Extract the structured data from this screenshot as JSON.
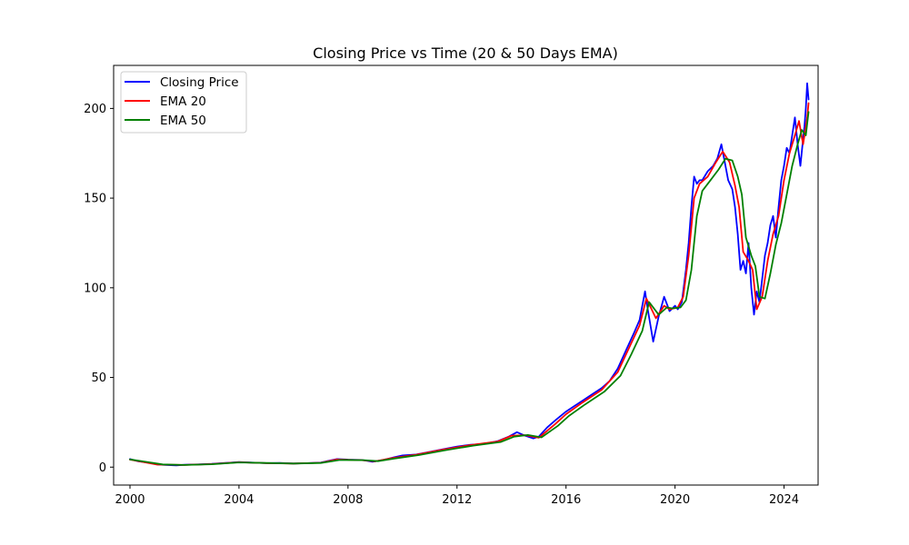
{
  "chart_data": {
    "type": "line",
    "title": "Closing Price vs Time (20 & 50 Days EMA)",
    "xlabel": "",
    "ylabel": "",
    "xlim": [
      1999.4,
      2025.25
    ],
    "ylim": [
      -10,
      224
    ],
    "x_ticks": [
      2000,
      2004,
      2008,
      2012,
      2016,
      2020,
      2024
    ],
    "y_ticks": [
      0,
      50,
      100,
      150,
      200
    ],
    "grid": false,
    "legend_position": "top-left",
    "series": [
      {
        "name": "Closing Price",
        "color": "#0000ff",
        "x": [
          2000.0,
          2000.3,
          2000.7,
          2001.0,
          2001.3,
          2001.7,
          2002.0,
          2002.5,
          2003.0,
          2003.5,
          2004.0,
          2004.5,
          2005.0,
          2005.5,
          2006.0,
          2006.5,
          2007.0,
          2007.3,
          2007.6,
          2008.0,
          2008.5,
          2008.9,
          2009.3,
          2009.7,
          2010.0,
          2010.5,
          2011.0,
          2011.5,
          2012.0,
          2012.5,
          2013.0,
          2013.5,
          2013.9,
          2014.2,
          2014.5,
          2014.8,
          2015.0,
          2015.3,
          2015.6,
          2016.0,
          2016.3,
          2016.6,
          2017.0,
          2017.3,
          2017.6,
          2017.9,
          2018.2,
          2018.5,
          2018.7,
          2018.9,
          2019.0,
          2019.2,
          2019.4,
          2019.6,
          2019.8,
          2020.0,
          2020.1,
          2020.25,
          2020.4,
          2020.5,
          2020.6,
          2020.7,
          2020.8,
          2020.9,
          2021.0,
          2021.2,
          2021.4,
          2021.55,
          2021.7,
          2021.8,
          2021.95,
          2022.1,
          2022.2,
          2022.3,
          2022.4,
          2022.5,
          2022.6,
          2022.7,
          2022.8,
          2022.9,
          2023.0,
          2023.1,
          2023.2,
          2023.3,
          2023.4,
          2023.5,
          2023.6,
          2023.7,
          2023.8,
          2023.9,
          2024.0,
          2024.1,
          2024.2,
          2024.3,
          2024.4,
          2024.5,
          2024.6,
          2024.7,
          2024.75,
          2024.8,
          2024.85,
          2024.9
        ],
        "values": [
          4.5,
          3.2,
          2.5,
          1.5,
          1.2,
          1.0,
          1.3,
          1.5,
          1.8,
          2.3,
          2.8,
          2.5,
          2.2,
          2.3,
          2.0,
          2.2,
          2.5,
          3.5,
          4.5,
          4.2,
          4.0,
          3.0,
          4.0,
          5.5,
          6.5,
          7.0,
          8.5,
          10.0,
          11.5,
          12.5,
          13.0,
          14.5,
          17.0,
          19.5,
          17.5,
          16.0,
          17.0,
          22.0,
          26.0,
          31.0,
          34.0,
          37.0,
          41.0,
          44.0,
          48.0,
          55.0,
          65.0,
          75.0,
          82.0,
          98.0,
          88.0,
          70.0,
          84.0,
          95.0,
          87.0,
          90.0,
          88.0,
          92.0,
          110.0,
          125.0,
          145.0,
          162.0,
          158.0,
          160.0,
          160.0,
          165.0,
          168.0,
          172.0,
          180.0,
          172.0,
          160.0,
          155.0,
          145.0,
          130.0,
          110.0,
          115.0,
          108.0,
          125.0,
          100.0,
          85.0,
          98.0,
          92.0,
          105.0,
          118.0,
          125.0,
          135.0,
          140.0,
          128.0,
          145.0,
          160.0,
          168.0,
          178.0,
          175.0,
          185.0,
          195.0,
          180.0,
          168.0,
          183.0,
          190.0,
          200.0,
          214.0,
          205.0
        ]
      },
      {
        "name": "EMA 20",
        "color": "#ff0000",
        "x": [
          2000.0,
          2000.5,
          2001.0,
          2002.0,
          2003.0,
          2004.0,
          2005.0,
          2006.0,
          2007.0,
          2007.6,
          2008.5,
          2009.0,
          2009.6,
          2010.5,
          2011.5,
          2012.5,
          2013.5,
          2014.0,
          2014.5,
          2015.0,
          2015.6,
          2016.0,
          2016.6,
          2017.3,
          2017.9,
          2018.3,
          2018.7,
          2018.95,
          2019.3,
          2019.6,
          2019.8,
          2020.1,
          2020.3,
          2020.5,
          2020.7,
          2020.9,
          2021.2,
          2021.5,
          2021.75,
          2022.0,
          2022.2,
          2022.35,
          2022.5,
          2022.7,
          2022.85,
          2023.0,
          2023.2,
          2023.4,
          2023.6,
          2023.8,
          2024.0,
          2024.2,
          2024.4,
          2024.55,
          2024.7,
          2024.85,
          2024.9
        ],
        "values": [
          4.2,
          2.8,
          1.4,
          1.2,
          1.7,
          2.7,
          2.2,
          2.0,
          2.4,
          4.3,
          3.9,
          3.2,
          5.0,
          6.9,
          9.8,
          12.3,
          14.3,
          17.5,
          17.8,
          16.4,
          24.0,
          29.5,
          36.0,
          43.0,
          53.0,
          66.0,
          79.0,
          94.0,
          83.0,
          90.0,
          88.0,
          89.0,
          95.0,
          118.0,
          150.0,
          158.0,
          162.0,
          170.0,
          176.0,
          170.0,
          157.0,
          145.0,
          120.0,
          115.0,
          110.0,
          88.0,
          95.0,
          115.0,
          130.0,
          140.0,
          160.0,
          175.0,
          185.0,
          193.0,
          180.0,
          195.0,
          203.0
        ]
      },
      {
        "name": "EMA 50",
        "color": "#008000",
        "x": [
          2000.0,
          2000.6,
          2001.2,
          2002.0,
          2003.0,
          2004.0,
          2005.0,
          2006.0,
          2007.0,
          2007.7,
          2008.6,
          2009.1,
          2009.7,
          2010.6,
          2011.6,
          2012.6,
          2013.6,
          2014.1,
          2014.6,
          2015.1,
          2015.7,
          2016.1,
          2016.7,
          2017.4,
          2018.0,
          2018.4,
          2018.8,
          2019.05,
          2019.4,
          2019.7,
          2019.9,
          2020.2,
          2020.4,
          2020.6,
          2020.8,
          2021.0,
          2021.3,
          2021.6,
          2021.85,
          2022.1,
          2022.3,
          2022.45,
          2022.6,
          2022.8,
          2022.95,
          2023.1,
          2023.3,
          2023.5,
          2023.7,
          2023.9,
          2024.1,
          2024.3,
          2024.5,
          2024.65,
          2024.8,
          2024.9
        ],
        "values": [
          4.3,
          2.9,
          1.5,
          1.2,
          1.6,
          2.6,
          2.3,
          2.0,
          2.3,
          4.0,
          3.9,
          3.3,
          4.8,
          6.7,
          9.5,
          12.0,
          14.0,
          17.0,
          17.9,
          16.6,
          23.0,
          28.5,
          35.0,
          42.0,
          51.0,
          63.0,
          76.0,
          92.0,
          85.0,
          89.0,
          88.5,
          89.0,
          93.0,
          110.0,
          140.0,
          154.0,
          160.0,
          166.0,
          172.0,
          171.0,
          162.0,
          152.0,
          128.0,
          118.0,
          112.0,
          95.0,
          94.0,
          108.0,
          124.0,
          136.0,
          152.0,
          168.0,
          180.0,
          188.0,
          185.0,
          198.0
        ]
      }
    ]
  }
}
